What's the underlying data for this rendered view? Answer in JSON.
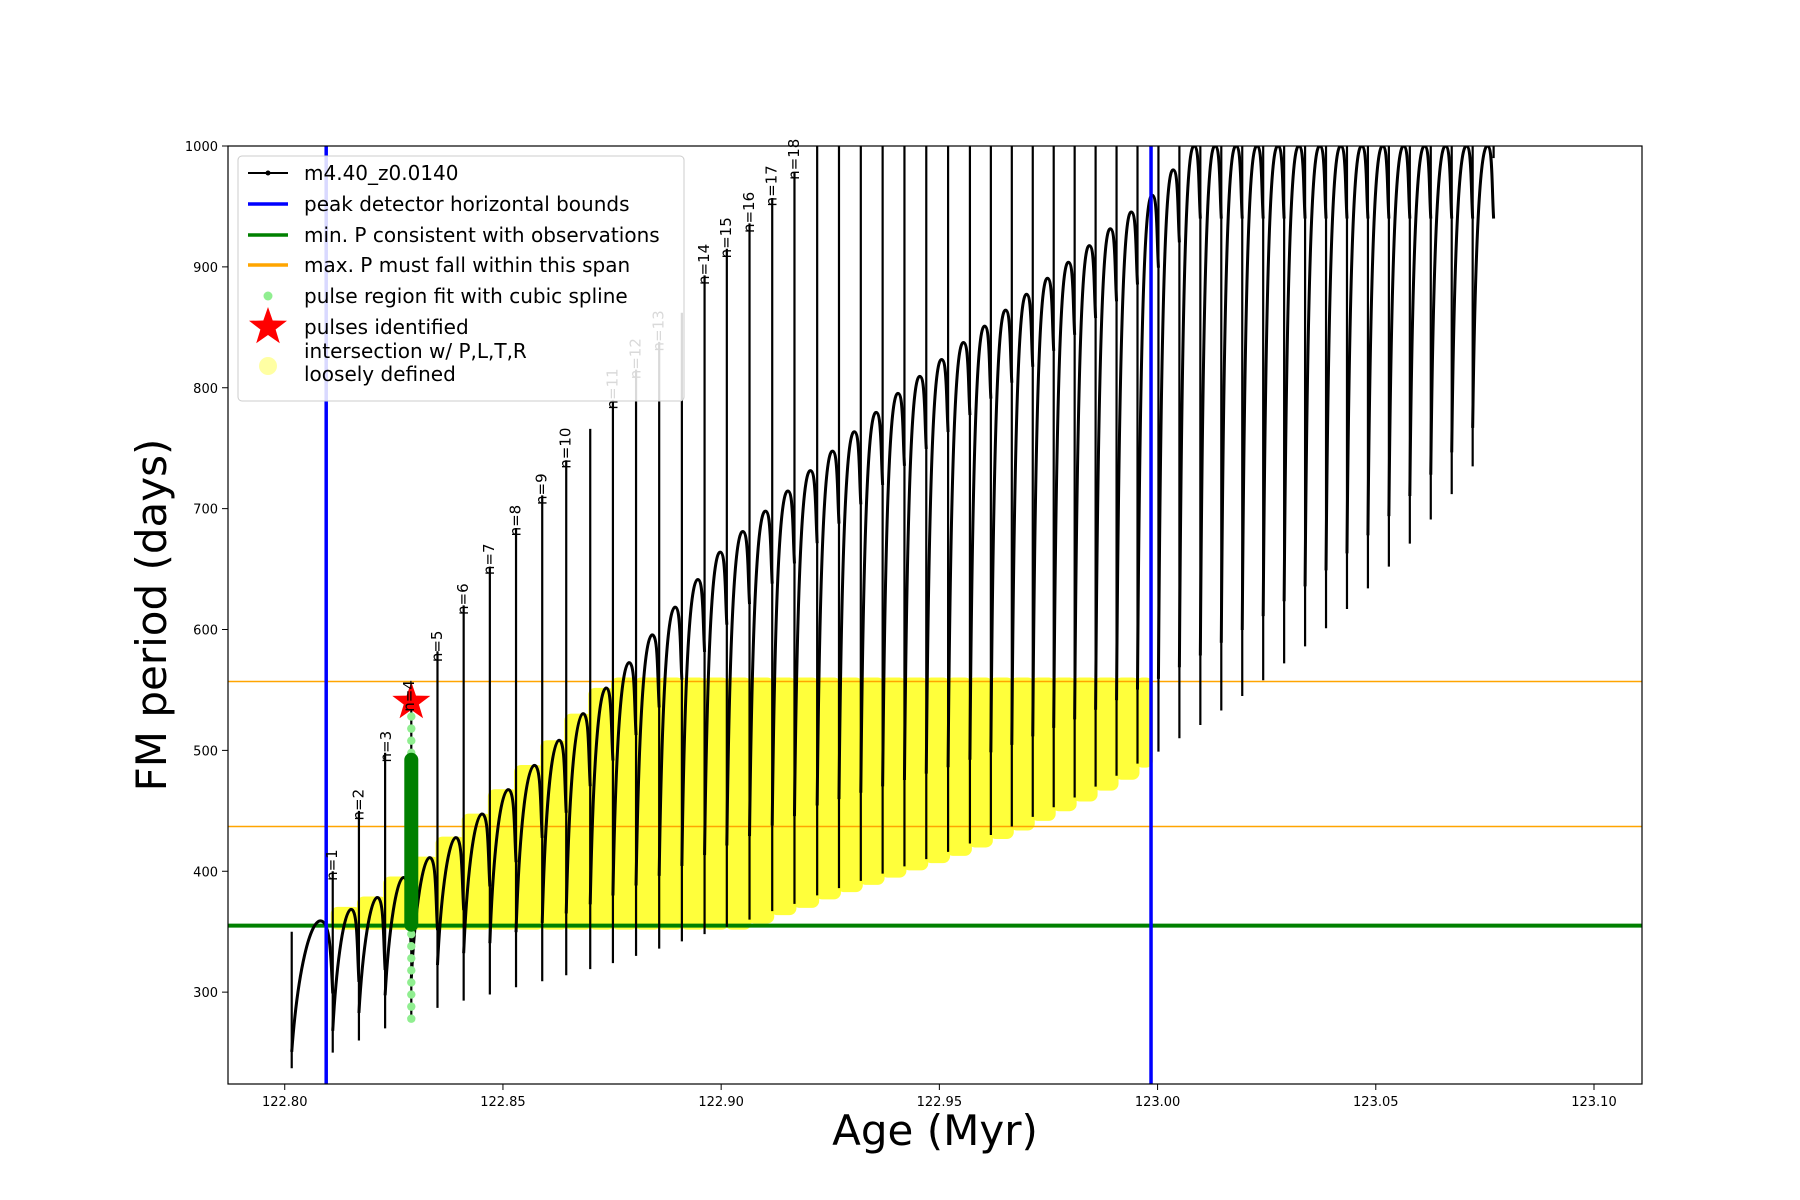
{
  "chart_data": {
    "type": "line",
    "xlabel": "Age (Myr)",
    "ylabel": "FM period (days)",
    "xlim": [
      122.787,
      123.111
    ],
    "ylim": [
      224,
      1000
    ],
    "x_ticks": [
      122.8,
      122.85,
      122.9,
      122.95,
      123.0,
      123.05,
      123.1
    ],
    "x_tick_labels": [
      "122.80",
      "122.85",
      "122.90",
      "122.95",
      "123.00",
      "123.05",
      "123.10"
    ],
    "y_ticks": [
      300,
      400,
      500,
      600,
      700,
      800,
      900,
      1000
    ],
    "y_tick_labels": [
      "300",
      "400",
      "500",
      "600",
      "700",
      "800",
      "900",
      "1000"
    ],
    "grid": false,
    "legend_position": "top-left",
    "legend": [
      {
        "label": "m4.40_z0.0140",
        "marker": "line-dot",
        "color": "#000000"
      },
      {
        "label": "peak detector horizontal bounds",
        "marker": "line",
        "color": "#0000ff"
      },
      {
        "label": "min. P consistent with observations",
        "marker": "line",
        "color": "#008000"
      },
      {
        "label": "max. P must fall within this span",
        "marker": "line",
        "color": "#ffa500"
      },
      {
        "label": "pulse region fit with cubic spline",
        "marker": "dot",
        "color": "#90ee90"
      },
      {
        "label": "pulses identified",
        "marker": "star",
        "color": "#ff0000"
      },
      {
        "label": "intersection w/ P,L,T,R\nloosely defined",
        "marker": "circle",
        "color": "#ffff99"
      }
    ],
    "vertical_lines": [
      {
        "x": 122.8095,
        "color": "#0000ff"
      },
      {
        "x": 122.9985,
        "color": "#0000ff"
      }
    ],
    "horizontal_lines": [
      {
        "y": 355,
        "color": "#008000"
      },
      {
        "y": 437,
        "color": "#ffa500"
      },
      {
        "y": 557,
        "color": "#ffa500"
      }
    ],
    "series": [
      {
        "name": "m4.40_z0.0140",
        "color": "#000000",
        "pulses": [
          {
            "x": 122.8016,
            "min": 237,
            "max": 350
          },
          {
            "x": 122.811,
            "min": 250,
            "max": 400
          },
          {
            "x": 122.817,
            "min": 260,
            "max": 450
          },
          {
            "x": 122.823,
            "min": 270,
            "max": 498
          },
          {
            "x": 122.829,
            "min": 280,
            "max": 540
          },
          {
            "x": 122.835,
            "min": 287,
            "max": 582
          },
          {
            "x": 122.841,
            "min": 293,
            "max": 620
          },
          {
            "x": 122.847,
            "min": 298,
            "max": 652
          },
          {
            "x": 122.853,
            "min": 304,
            "max": 684
          },
          {
            "x": 122.859,
            "min": 309,
            "max": 711
          },
          {
            "x": 122.8645,
            "min": 314,
            "max": 740
          },
          {
            "x": 122.87,
            "min": 319,
            "max": 766
          },
          {
            "x": 122.8752,
            "min": 324,
            "max": 790
          },
          {
            "x": 122.8805,
            "min": 330,
            "max": 815
          },
          {
            "x": 122.8858,
            "min": 336,
            "max": 838
          },
          {
            "x": 122.891,
            "min": 342,
            "max": 862
          },
          {
            "x": 122.8962,
            "min": 348,
            "max": 893
          },
          {
            "x": 122.9013,
            "min": 354,
            "max": 915
          },
          {
            "x": 122.9065,
            "min": 360,
            "max": 936
          },
          {
            "x": 122.9117,
            "min": 367,
            "max": 957
          },
          {
            "x": 122.9168,
            "min": 373,
            "max": 978
          },
          {
            "x": 122.922,
            "min": 380,
            "max": 1000
          },
          {
            "x": 122.927,
            "min": 386,
            "max": 1000
          },
          {
            "x": 122.932,
            "min": 392,
            "max": 1000
          },
          {
            "x": 122.937,
            "min": 398,
            "max": 1000
          },
          {
            "x": 122.942,
            "min": 404,
            "max": 1000
          },
          {
            "x": 122.947,
            "min": 410,
            "max": 1000
          },
          {
            "x": 122.952,
            "min": 416,
            "max": 1000
          },
          {
            "x": 122.957,
            "min": 423,
            "max": 1000
          },
          {
            "x": 122.9618,
            "min": 430,
            "max": 1000
          },
          {
            "x": 122.9666,
            "min": 437,
            "max": 1000
          },
          {
            "x": 122.9714,
            "min": 445,
            "max": 1000
          },
          {
            "x": 122.9762,
            "min": 453,
            "max": 1000
          },
          {
            "x": 122.981,
            "min": 461,
            "max": 1000
          },
          {
            "x": 122.9858,
            "min": 470,
            "max": 1000
          },
          {
            "x": 122.9906,
            "min": 479,
            "max": 1000
          },
          {
            "x": 122.9954,
            "min": 489,
            "max": 1000
          },
          {
            "x": 123.0002,
            "min": 499,
            "max": 1000
          },
          {
            "x": 123.005,
            "min": 510,
            "max": 1000
          },
          {
            "x": 123.0098,
            "min": 521,
            "max": 1000
          },
          {
            "x": 123.0146,
            "min": 533,
            "max": 1000
          },
          {
            "x": 123.0194,
            "min": 545,
            "max": 1000
          },
          {
            "x": 123.0242,
            "min": 558,
            "max": 1000
          },
          {
            "x": 123.029,
            "min": 572,
            "max": 1000
          },
          {
            "x": 123.0338,
            "min": 586,
            "max": 1000
          },
          {
            "x": 123.0386,
            "min": 601,
            "max": 1000
          },
          {
            "x": 123.0434,
            "min": 617,
            "max": 1000
          },
          {
            "x": 123.0482,
            "min": 634,
            "max": 1000
          },
          {
            "x": 123.053,
            "min": 652,
            "max": 1000
          },
          {
            "x": 123.0578,
            "min": 671,
            "max": 1000
          },
          {
            "x": 123.0626,
            "min": 691,
            "max": 1000
          },
          {
            "x": 123.0674,
            "min": 712,
            "max": 1000
          },
          {
            "x": 123.0722,
            "min": 735,
            "max": 1000
          },
          {
            "x": 123.077,
            "min": 990,
            "max": 1000
          }
        ],
        "envelope": [
          {
            "x": 122.8016,
            "y": 350
          },
          {
            "x": 122.82,
            "y": 375
          },
          {
            "x": 122.84,
            "y": 430
          },
          {
            "x": 122.86,
            "y": 497
          },
          {
            "x": 122.88,
            "y": 577
          },
          {
            "x": 122.9,
            "y": 665
          },
          {
            "x": 122.92,
            "y": 730
          },
          {
            "x": 122.94,
            "y": 794
          },
          {
            "x": 122.96,
            "y": 850
          },
          {
            "x": 122.98,
            "y": 905
          },
          {
            "x": 122.999,
            "y": 960
          },
          {
            "x": 123.008,
            "y": 1000
          }
        ]
      }
    ],
    "pulse_labels": [
      {
        "text": "n=1",
        "x": 122.812,
        "y": 392,
        "faded": false
      },
      {
        "text": "n=2",
        "x": 122.818,
        "y": 442,
        "faded": false
      },
      {
        "text": "n=3",
        "x": 122.8244,
        "y": 490,
        "faded": false
      },
      {
        "text": "n=4",
        "x": 122.8296,
        "y": 532,
        "faded": false
      },
      {
        "text": "n=5",
        "x": 122.836,
        "y": 573,
        "faded": false
      },
      {
        "text": "n=6",
        "x": 122.842,
        "y": 612,
        "faded": false
      },
      {
        "text": "n=7",
        "x": 122.848,
        "y": 645,
        "faded": false
      },
      {
        "text": "n=8",
        "x": 122.854,
        "y": 677,
        "faded": false
      },
      {
        "text": "n=9",
        "x": 122.86,
        "y": 703,
        "faded": false
      },
      {
        "text": "n=10",
        "x": 122.8655,
        "y": 733,
        "faded": false
      },
      {
        "text": "n=11",
        "x": 122.8762,
        "y": 782,
        "faded": true
      },
      {
        "text": "n=12",
        "x": 122.8815,
        "y": 807,
        "faded": true
      },
      {
        "text": "n=13",
        "x": 122.8868,
        "y": 830,
        "faded": true
      },
      {
        "text": "n=14",
        "x": 122.8972,
        "y": 885,
        "faded": false
      },
      {
        "text": "n=15",
        "x": 122.9023,
        "y": 907,
        "faded": false
      },
      {
        "text": "n=16",
        "x": 122.9075,
        "y": 928,
        "faded": false
      },
      {
        "text": "n=17",
        "x": 122.9127,
        "y": 950,
        "faded": false
      },
      {
        "text": "n=18",
        "x": 122.9178,
        "y": 972,
        "faded": false
      }
    ],
    "pulses_identified": [
      {
        "x": 122.829,
        "y": 540
      }
    ],
    "spline_fit_region": {
      "x": 122.829,
      "y_min": 278,
      "y_max": 540
    },
    "observation_band": {
      "y_min": 355,
      "y_max": 557,
      "x_min": 122.8095,
      "x_max": 122.9985
    },
    "colors": {
      "model": "#000000",
      "bounds": "#0000ff",
      "min_p": "#008000",
      "max_p": "#ffa500",
      "spline": "#90ee90",
      "spline_dark": "#008000",
      "star": "#ff0000",
      "intersection": "#ffff00",
      "faded_label": "#bbbbbb"
    }
  }
}
